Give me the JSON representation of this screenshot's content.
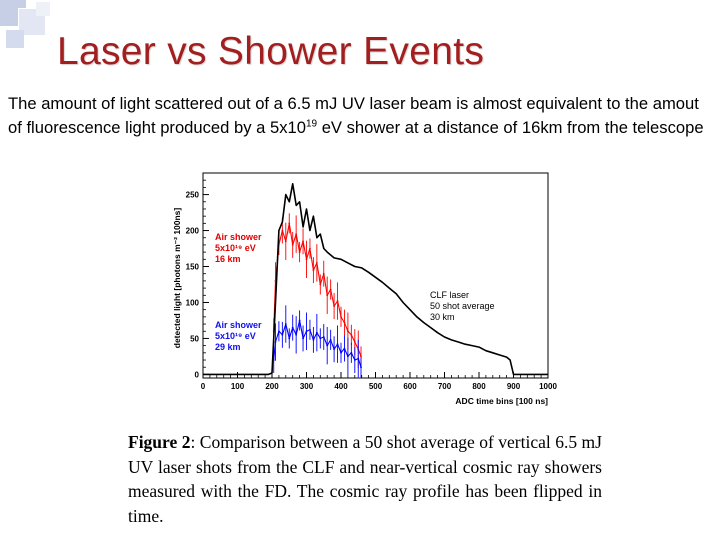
{
  "slide": {
    "title": "Laser vs Shower Events",
    "intro_part1": "The amount of light scattered out of a 6.5 mJ UV laser beam is almost equivalent to the amout of fluorescence light produced by a 5x10",
    "intro_exponent": "19",
    "intro_part2": " eV shower at a distance of 16km from the telescope"
  },
  "figure": {
    "caption_label": "Figure 2",
    "caption_text": ": Comparison between a 50 shot average of vertical 6.5 mJ UV laser shots from the CLF and near-vertical cosmic ray showers measured with the FD. The cosmic ray profile has been flipped in time.",
    "annotations": {
      "red_line1": "Air shower",
      "red_line2": "5x10¹⁹ eV",
      "red_line3": "16 km",
      "blue_line1": "Air shower",
      "blue_line2": "5x10¹⁹ eV",
      "blue_line3": "29 km",
      "black_line1": "CLF laser",
      "black_line2": "50 shot average",
      "black_line3": "30 km"
    }
  },
  "chart_data": {
    "type": "line",
    "xlabel": "ADC time bins [100 ns]",
    "ylabel": "detected light [photons m⁻² 100ns]",
    "xlim": [
      0,
      1000
    ],
    "ylim": [
      -5,
      280
    ],
    "xticks": [
      "0",
      "100",
      "200",
      "300",
      "400",
      "500",
      "600",
      "700",
      "800",
      "900",
      "1000"
    ],
    "yticks": [
      "0",
      "50",
      "100",
      "150",
      "200",
      "250"
    ],
    "series": [
      {
        "name": "CLF laser",
        "color": "#000000",
        "x": [
          0,
          190,
          200,
          210,
          220,
          230,
          240,
          250,
          260,
          270,
          280,
          290,
          300,
          310,
          320,
          330,
          340,
          350,
          360,
          380,
          400,
          420,
          440,
          460,
          480,
          500,
          520,
          540,
          560,
          580,
          600,
          620,
          640,
          660,
          680,
          700,
          720,
          740,
          760,
          780,
          800,
          820,
          840,
          860,
          880,
          890,
          900,
          920,
          940,
          960,
          1000
        ],
        "y": [
          0,
          0,
          2,
          100,
          200,
          212,
          250,
          240,
          265,
          235,
          240,
          205,
          230,
          200,
          220,
          190,
          195,
          175,
          170,
          162,
          160,
          155,
          150,
          148,
          142,
          135,
          128,
          120,
          112,
          100,
          90,
          80,
          72,
          65,
          58,
          52,
          48,
          45,
          42,
          40,
          38,
          33,
          30,
          27,
          24,
          20,
          0,
          0,
          0,
          0,
          0
        ]
      },
      {
        "name": "Air shower 16 km",
        "color": "#ff0000",
        "x": [
          205,
          210,
          220,
          230,
          240,
          250,
          260,
          270,
          280,
          290,
          300,
          310,
          320,
          330,
          340,
          350,
          360,
          370,
          380,
          390,
          400,
          410,
          420,
          430,
          440,
          450,
          458
        ],
        "y": [
          60,
          130,
          180,
          200,
          185,
          210,
          180,
          195,
          170,
          185,
          160,
          175,
          145,
          155,
          125,
          140,
          110,
          118,
          95,
          102,
          80,
          72,
          60,
          55,
          45,
          35,
          25
        ]
      },
      {
        "name": "Air shower 29 km",
        "color": "#0000ff",
        "x": [
          205,
          210,
          220,
          230,
          240,
          250,
          260,
          270,
          280,
          290,
          300,
          310,
          320,
          330,
          340,
          350,
          360,
          370,
          380,
          390,
          400,
          410,
          420,
          430,
          440,
          450,
          458
        ],
        "y": [
          20,
          45,
          60,
          55,
          70,
          50,
          65,
          55,
          75,
          50,
          60,
          62,
          48,
          58,
          50,
          52,
          40,
          48,
          35,
          42,
          30,
          36,
          25,
          30,
          20,
          22,
          10
        ]
      }
    ]
  }
}
